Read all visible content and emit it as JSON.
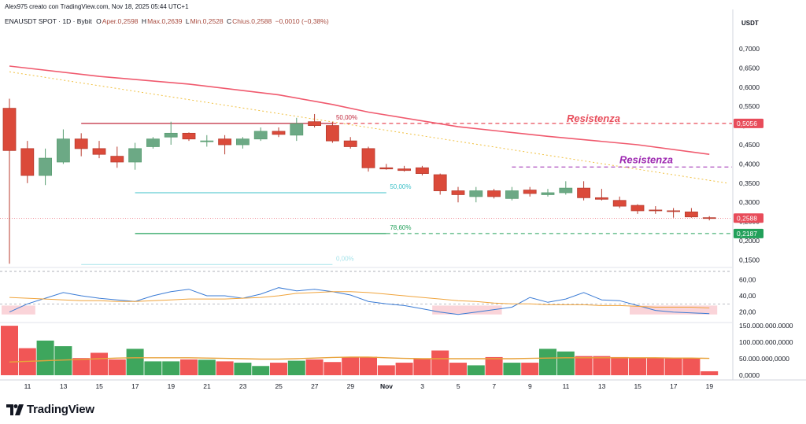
{
  "header": {
    "creator_line": "Alex975 creato con TradingView.com, Nov 18, 2025 05:44 UTC+1",
    "symbol": "ENAUSDT SPOT · 1D · Bybit",
    "open_label": "O",
    "open_text": "Aper.0,2598",
    "high_label": "H",
    "high_text": "Max.0,2639",
    "low_label": "L",
    "low_text": "Min.0,2528",
    "close_label": "C",
    "close_text": "Chius.0,2588",
    "change_text": "−0,0010 (−0,38%)"
  },
  "price_axis": {
    "currency": "USDT",
    "ticks": [
      "0,7000",
      "0,6500",
      "0,6000",
      "0,5500",
      "0,5000",
      "0,4500",
      "0,4000",
      "0,3500",
      "0,3000",
      "0,2500",
      "0,2000",
      "0,1500"
    ],
    "badges": [
      {
        "text": "0,5056",
        "value": 0.5056,
        "color": "#e84c5a"
      },
      {
        "text": "0,2588",
        "value": 0.2588,
        "color": "#e84c5a"
      },
      {
        "text": "0,2187",
        "value": 0.2187,
        "color": "#22a05a"
      }
    ]
  },
  "rsi_axis": {
    "ticks": [
      "60,00",
      "40,00",
      "20,00"
    ]
  },
  "volume_axis": {
    "ticks": [
      "150.000.000.0000",
      "100.000.000,0000",
      "50.000.000,0000",
      "0,0000"
    ]
  },
  "time_axis": {
    "labels": [
      "11",
      "13",
      "15",
      "17",
      "19",
      "21",
      "23",
      "25",
      "27",
      "29",
      "Nov",
      "3",
      "5",
      "7",
      "9",
      "11",
      "13",
      "15",
      "17",
      "19"
    ]
  },
  "annotations": {
    "fib_top": "50,00%",
    "fib_mid": "50,00%",
    "fib_low": "78,60%",
    "fib_faint": "0,00%",
    "resistance_1": "Resistenza",
    "resistance_2": "Resistenza"
  },
  "footer": {
    "brand": "TradingView"
  },
  "chart_data": {
    "type": "candlestick",
    "title": "ENAUSDT SPOT · 1D · Bybit",
    "ylabel": "USDT",
    "ylim": [
      0.12,
      0.75
    ],
    "dates": [
      "Oct 10",
      "Oct 11",
      "Oct 12",
      "Oct 13",
      "Oct 14",
      "Oct 15",
      "Oct 16",
      "Oct 17",
      "Oct 18",
      "Oct 19",
      "Oct 20",
      "Oct 21",
      "Oct 22",
      "Oct 23",
      "Oct 24",
      "Oct 25",
      "Oct 26",
      "Oct 27",
      "Oct 28",
      "Oct 29",
      "Oct 30",
      "Oct 31",
      "Nov 1",
      "Nov 2",
      "Nov 3",
      "Nov 4",
      "Nov 5",
      "Nov 6",
      "Nov 7",
      "Nov 8",
      "Nov 9",
      "Nov 10",
      "Nov 11",
      "Nov 12",
      "Nov 13",
      "Nov 14",
      "Nov 15",
      "Nov 16",
      "Nov 17",
      "Nov 18"
    ],
    "candles": [
      {
        "o": 0.545,
        "h": 0.57,
        "l": 0.14,
        "c": 0.435
      },
      {
        "o": 0.44,
        "h": 0.46,
        "l": 0.35,
        "c": 0.37
      },
      {
        "o": 0.37,
        "h": 0.44,
        "l": 0.345,
        "c": 0.415
      },
      {
        "o": 0.405,
        "h": 0.49,
        "l": 0.4,
        "c": 0.465
      },
      {
        "o": 0.465,
        "h": 0.48,
        "l": 0.42,
        "c": 0.44
      },
      {
        "o": 0.44,
        "h": 0.46,
        "l": 0.415,
        "c": 0.425
      },
      {
        "o": 0.42,
        "h": 0.445,
        "l": 0.39,
        "c": 0.405
      },
      {
        "o": 0.405,
        "h": 0.455,
        "l": 0.385,
        "c": 0.44
      },
      {
        "o": 0.445,
        "h": 0.47,
        "l": 0.44,
        "c": 0.465
      },
      {
        "o": 0.47,
        "h": 0.51,
        "l": 0.45,
        "c": 0.48
      },
      {
        "o": 0.48,
        "h": 0.482,
        "l": 0.46,
        "c": 0.465
      },
      {
        "o": 0.46,
        "h": 0.475,
        "l": 0.445,
        "c": 0.46
      },
      {
        "o": 0.465,
        "h": 0.475,
        "l": 0.425,
        "c": 0.45
      },
      {
        "o": 0.45,
        "h": 0.47,
        "l": 0.44,
        "c": 0.465
      },
      {
        "o": 0.465,
        "h": 0.495,
        "l": 0.46,
        "c": 0.485
      },
      {
        "o": 0.485,
        "h": 0.495,
        "l": 0.47,
        "c": 0.477
      },
      {
        "o": 0.475,
        "h": 0.52,
        "l": 0.46,
        "c": 0.505
      },
      {
        "o": 0.51,
        "h": 0.53,
        "l": 0.495,
        "c": 0.5
      },
      {
        "o": 0.5,
        "h": 0.51,
        "l": 0.455,
        "c": 0.46
      },
      {
        "o": 0.46,
        "h": 0.47,
        "l": 0.44,
        "c": 0.445
      },
      {
        "o": 0.44,
        "h": 0.445,
        "l": 0.38,
        "c": 0.39
      },
      {
        "o": 0.39,
        "h": 0.4,
        "l": 0.385,
        "c": 0.387
      },
      {
        "o": 0.387,
        "h": 0.395,
        "l": 0.38,
        "c": 0.383
      },
      {
        "o": 0.39,
        "h": 0.395,
        "l": 0.37,
        "c": 0.375
      },
      {
        "o": 0.372,
        "h": 0.375,
        "l": 0.32,
        "c": 0.33
      },
      {
        "o": 0.33,
        "h": 0.34,
        "l": 0.3,
        "c": 0.32
      },
      {
        "o": 0.315,
        "h": 0.34,
        "l": 0.3,
        "c": 0.33
      },
      {
        "o": 0.33,
        "h": 0.335,
        "l": 0.31,
        "c": 0.315
      },
      {
        "o": 0.31,
        "h": 0.34,
        "l": 0.305,
        "c": 0.33
      },
      {
        "o": 0.332,
        "h": 0.34,
        "l": 0.315,
        "c": 0.323
      },
      {
        "o": 0.32,
        "h": 0.335,
        "l": 0.315,
        "c": 0.325
      },
      {
        "o": 0.325,
        "h": 0.355,
        "l": 0.32,
        "c": 0.337
      },
      {
        "o": 0.337,
        "h": 0.355,
        "l": 0.305,
        "c": 0.312
      },
      {
        "o": 0.312,
        "h": 0.335,
        "l": 0.305,
        "c": 0.308
      },
      {
        "o": 0.305,
        "h": 0.315,
        "l": 0.285,
        "c": 0.29
      },
      {
        "o": 0.292,
        "h": 0.295,
        "l": 0.27,
        "c": 0.278
      },
      {
        "o": 0.28,
        "h": 0.29,
        "l": 0.27,
        "c": 0.278
      },
      {
        "o": 0.278,
        "h": 0.285,
        "l": 0.26,
        "c": 0.276
      },
      {
        "o": 0.275,
        "h": 0.285,
        "l": 0.26,
        "c": 0.262
      },
      {
        "o": 0.26,
        "h": 0.264,
        "l": 0.253,
        "c": 0.2588
      }
    ],
    "moving_average_200": [
      {
        "i": 0,
        "v": 0.655
      },
      {
        "i": 5,
        "v": 0.628
      },
      {
        "i": 10,
        "v": 0.608
      },
      {
        "i": 15,
        "v": 0.58
      },
      {
        "i": 18,
        "v": 0.555
      },
      {
        "i": 20,
        "v": 0.535
      },
      {
        "i": 25,
        "v": 0.497
      },
      {
        "i": 30,
        "v": 0.472
      },
      {
        "i": 35,
        "v": 0.45
      },
      {
        "i": 39,
        "v": 0.425
      }
    ],
    "trendline_dotted": [
      {
        "i": 0,
        "v": 0.64
      },
      {
        "i": 40,
        "v": 0.35
      }
    ],
    "levels": [
      {
        "name": "Resistenza horizontal",
        "value": 0.5056
      },
      {
        "name": "Resistenza 2",
        "value": 0.392
      },
      {
        "name": "fib 50%",
        "value": 0.325
      },
      {
        "name": "fib 78.6%",
        "value": 0.2187
      },
      {
        "name": "fib 0%",
        "value": 0.138
      },
      {
        "name": "current",
        "value": 0.2588
      }
    ],
    "rsi": {
      "ylim": [
        10,
        70
      ],
      "values": [
        20,
        30,
        37,
        44,
        40,
        37,
        35,
        33,
        40,
        45,
        48,
        40,
        40,
        37,
        42,
        50,
        46,
        48,
        45,
        41,
        33,
        30,
        28,
        24,
        20,
        17,
        20,
        23,
        26,
        38,
        32,
        36,
        44,
        35,
        34,
        28,
        22,
        20,
        19,
        18
      ],
      "ma": [
        38,
        37,
        36,
        35,
        34,
        34,
        33,
        33,
        34,
        35,
        36,
        36,
        36,
        37,
        38,
        40,
        43,
        44,
        45,
        45,
        44,
        42,
        40,
        38,
        36,
        34,
        33,
        31,
        30,
        30,
        29,
        29,
        29,
        28,
        28,
        27,
        26,
        26,
        26,
        25
      ],
      "overbought": 70,
      "oversold": 30
    },
    "volume": {
      "ylim": [
        0,
        155000000
      ],
      "values": [
        150000000,
        82000000,
        105000000,
        88000000,
        52000000,
        68000000,
        48000000,
        80000000,
        42000000,
        42000000,
        48000000,
        47000000,
        42000000,
        38000000,
        28000000,
        38000000,
        44000000,
        48000000,
        40000000,
        56000000,
        56000000,
        30000000,
        38000000,
        50000000,
        75000000,
        38000000,
        30000000,
        55000000,
        38000000,
        38000000,
        80000000,
        72000000,
        58000000,
        58000000,
        55000000,
        52000000,
        52000000,
        52000000,
        52000000,
        12000000
      ],
      "ma": [
        40000000,
        42000000,
        44000000,
        46000000,
        48000000,
        50000000,
        52000000,
        53000000,
        53000000,
        53000000,
        53000000,
        52000000,
        51000000,
        50000000,
        49000000,
        49000000,
        50000000,
        52000000,
        54000000,
        55000000,
        55000000,
        53000000,
        51000000,
        50000000,
        50000000,
        50000000,
        50000000,
        50000000,
        50000000,
        51000000,
        52000000,
        53000000,
        53000000,
        53000000,
        53000000,
        53000000,
        53000000,
        52000000,
        52000000,
        51000000
      ]
    }
  }
}
